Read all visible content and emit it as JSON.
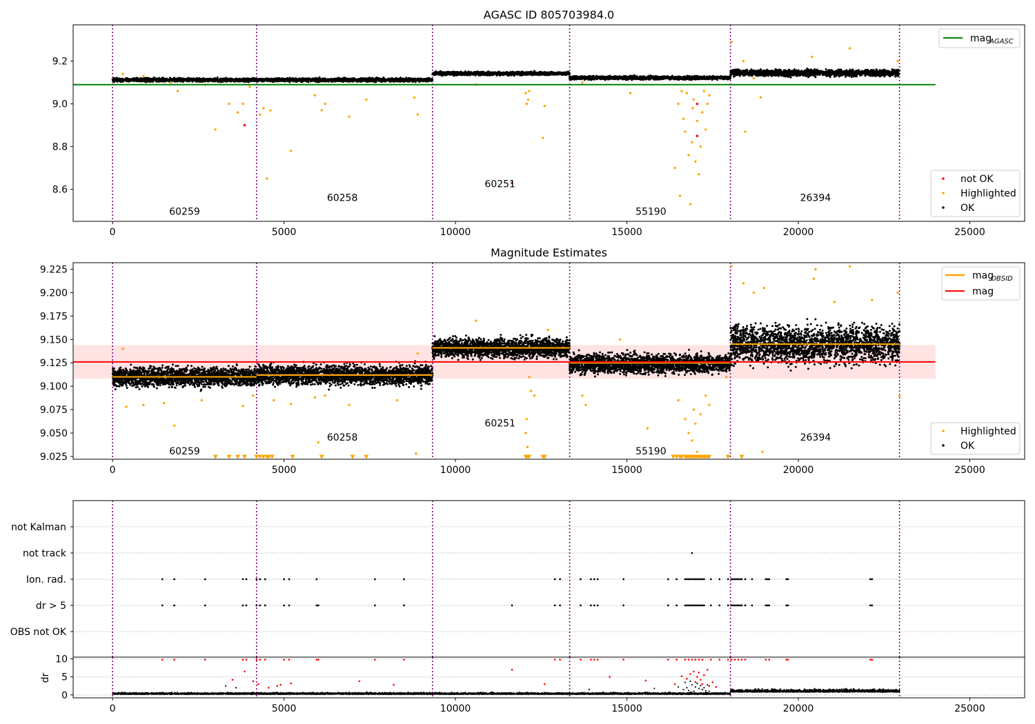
{
  "chart_data": [
    {
      "type": "scatter",
      "title": "AGASC ID 805703984.0",
      "xlim": [
        -1150,
        26600
      ],
      "ylim": [
        8.45,
        9.37
      ],
      "xticks": [
        0,
        5000,
        10000,
        15000,
        20000,
        25000
      ],
      "yticks": [
        8.6,
        8.8,
        9.0,
        9.2
      ],
      "ytick_labels": [
        "8.6",
        "8.8",
        "9.0",
        "9.2"
      ],
      "obsid_boundaries": [
        0,
        4200,
        9330,
        13330,
        18020,
        22950
      ],
      "obsid_labels": [
        {
          "text": "60259",
          "x": 2100,
          "y": 8.48
        },
        {
          "text": "60258",
          "x": 6700,
          "y": 8.545
        },
        {
          "text": "60251",
          "x": 11300,
          "y": 8.61
        },
        {
          "text": "55190",
          "x": 15700,
          "y": 8.48
        },
        {
          "text": "26394",
          "x": 20500,
          "y": 8.545
        }
      ],
      "mag_agasc": 9.09,
      "mag_agasc_range": [
        0,
        24000
      ],
      "ok_segments": [
        {
          "x0": 0,
          "x1": 4200,
          "level": 9.112,
          "noise": 0.008
        },
        {
          "x0": 4200,
          "x1": 9330,
          "level": 9.112,
          "noise": 0.008
        },
        {
          "x0": 9330,
          "x1": 13330,
          "level": 9.142,
          "noise": 0.008
        },
        {
          "x0": 13330,
          "x1": 18020,
          "level": 9.122,
          "noise": 0.008
        },
        {
          "x0": 18020,
          "x1": 22950,
          "level": 9.145,
          "noise": 0.015
        }
      ],
      "highlighted_points": [
        [
          300,
          9.14
        ],
        [
          900,
          9.13
        ],
        [
          1700,
          9.1
        ],
        [
          1900,
          9.06
        ],
        [
          2700,
          9.09
        ],
        [
          3000,
          8.88
        ],
        [
          3400,
          9.0
        ],
        [
          3650,
          8.96
        ],
        [
          3800,
          9.0
        ],
        [
          4000,
          9.08
        ],
        [
          4300,
          8.95
        ],
        [
          4400,
          8.98
        ],
        [
          4500,
          8.65
        ],
        [
          4600,
          8.97
        ],
        [
          5200,
          8.78
        ],
        [
          5900,
          9.04
        ],
        [
          6100,
          8.97
        ],
        [
          6200,
          9.0
        ],
        [
          6900,
          8.94
        ],
        [
          7400,
          9.02
        ],
        [
          8800,
          9.03
        ],
        [
          8900,
          8.95
        ],
        [
          10600,
          9.09
        ],
        [
          12050,
          9.05
        ],
        [
          12080,
          9.0
        ],
        [
          12120,
          9.02
        ],
        [
          12150,
          9.06
        ],
        [
          12600,
          8.99
        ],
        [
          12550,
          8.84
        ],
        [
          13700,
          9.1
        ],
        [
          15100,
          9.05
        ],
        [
          16400,
          8.7
        ],
        [
          16500,
          9.0
        ],
        [
          16550,
          8.57
        ],
        [
          16600,
          9.06
        ],
        [
          16650,
          8.93
        ],
        [
          16700,
          8.87
        ],
        [
          16750,
          9.05
        ],
        [
          16800,
          8.76
        ],
        [
          16850,
          8.53
        ],
        [
          16900,
          8.82
        ],
        [
          16920,
          8.98
        ],
        [
          16950,
          9.02
        ],
        [
          17000,
          8.73
        ],
        [
          17050,
          8.92
        ],
        [
          17100,
          8.67
        ],
        [
          17150,
          8.8
        ],
        [
          17200,
          8.96
        ],
        [
          17250,
          9.06
        ],
        [
          17300,
          8.88
        ],
        [
          17350,
          9.0
        ],
        [
          17400,
          9.04
        ],
        [
          18050,
          9.29
        ],
        [
          18400,
          9.2
        ],
        [
          18450,
          8.87
        ],
        [
          18700,
          9.12
        ],
        [
          18900,
          9.03
        ],
        [
          20400,
          9.22
        ],
        [
          21500,
          9.26
        ],
        [
          22900,
          9.2
        ]
      ],
      "not_ok_points": [
        [
          3850,
          8.9
        ],
        [
          11650,
          8.63
        ],
        [
          17050,
          8.85
        ],
        [
          17050,
          9.0
        ]
      ],
      "legend": [
        {
          "label": "mag",
          "sub": "AGASC",
          "color": "#008000"
        },
        {
          "label": "not OK",
          "color": "#ff0000"
        },
        {
          "label": "Highlighted",
          "color": "#ffa500"
        },
        {
          "label": "OK",
          "color": "#000000"
        }
      ]
    },
    {
      "type": "scatter",
      "title": "Magnitude Estimates",
      "xlim": [
        -1150,
        26600
      ],
      "ylim": [
        9.022,
        9.232
      ],
      "xticks": [
        0,
        5000,
        10000,
        15000,
        20000,
        25000
      ],
      "yticks": [
        9.025,
        9.05,
        9.075,
        9.1,
        9.125,
        9.15,
        9.175,
        9.2,
        9.225
      ],
      "ytick_labels": [
        "9.025",
        "9.050",
        "9.075",
        "9.100",
        "9.125",
        "9.150",
        "9.175",
        "9.200",
        "9.225"
      ],
      "obsid_boundaries": [
        0,
        4200,
        9330,
        13330,
        18020,
        22950
      ],
      "obsid_labels": [
        {
          "text": "60259",
          "x": 2100,
          "y": 9.027
        },
        {
          "text": "60258",
          "x": 6700,
          "y": 9.042
        },
        {
          "text": "60251",
          "x": 11300,
          "y": 9.057
        },
        {
          "text": "55190",
          "x": 15700,
          "y": 9.027
        },
        {
          "text": "26394",
          "x": 20500,
          "y": 9.042
        }
      ],
      "mag": 9.126,
      "mag_band": [
        9.108,
        9.144
      ],
      "mag_range": [
        0,
        24000
      ],
      "mag_obsid": [
        {
          "x0": 0,
          "x1": 4200,
          "value": 9.11
        },
        {
          "x0": 4200,
          "x1": 9330,
          "value": 9.112
        },
        {
          "x0": 9330,
          "x1": 13330,
          "value": 9.141
        },
        {
          "x0": 13330,
          "x1": 18020,
          "value": 9.125
        },
        {
          "x0": 18020,
          "x1": 22950,
          "value": 9.145
        }
      ],
      "ok_segments": [
        {
          "x0": 0,
          "x1": 4200,
          "level": 9.11,
          "noise": 0.01
        },
        {
          "x0": 4200,
          "x1": 9330,
          "level": 9.112,
          "noise": 0.01
        },
        {
          "x0": 9330,
          "x1": 13330,
          "level": 9.141,
          "noise": 0.01
        },
        {
          "x0": 13330,
          "x1": 18020,
          "level": 9.124,
          "noise": 0.01
        },
        {
          "x0": 18020,
          "x1": 22950,
          "level": 9.145,
          "noise": 0.02
        }
      ],
      "highlighted_points": [
        [
          300,
          9.14
        ],
        [
          400,
          9.078
        ],
        [
          900,
          9.08
        ],
        [
          1500,
          9.082
        ],
        [
          1800,
          9.058
        ],
        [
          2600,
          9.085
        ],
        [
          3800,
          9.079
        ],
        [
          4100,
          9.09
        ],
        [
          4700,
          9.085
        ],
        [
          5200,
          9.081
        ],
        [
          5900,
          9.088
        ],
        [
          6000,
          9.04
        ],
        [
          6200,
          9.09
        ],
        [
          6900,
          9.08
        ],
        [
          8300,
          9.085
        ],
        [
          8850,
          9.028
        ],
        [
          8900,
          9.135
        ],
        [
          10600,
          9.17
        ],
        [
          12050,
          9.05
        ],
        [
          12080,
          9.065
        ],
        [
          12100,
          9.035
        ],
        [
          12150,
          9.11
        ],
        [
          12200,
          9.095
        ],
        [
          12300,
          9.09
        ],
        [
          12700,
          9.16
        ],
        [
          13700,
          9.09
        ],
        [
          13800,
          9.08
        ],
        [
          14800,
          9.15
        ],
        [
          15600,
          9.055
        ],
        [
          16500,
          9.085
        ],
        [
          16700,
          9.065
        ],
        [
          16800,
          9.05
        ],
        [
          16900,
          9.042
        ],
        [
          16950,
          9.075
        ],
        [
          17000,
          9.06
        ],
        [
          17050,
          9.03
        ],
        [
          17150,
          9.07
        ],
        [
          17300,
          9.09
        ],
        [
          17400,
          9.08
        ],
        [
          17900,
          9.11
        ],
        [
          18050,
          9.228
        ],
        [
          18400,
          9.21
        ],
        [
          18700,
          9.2
        ],
        [
          18950,
          9.03
        ],
        [
          19000,
          9.205
        ],
        [
          20450,
          9.215
        ],
        [
          20500,
          9.225
        ],
        [
          21050,
          9.19
        ],
        [
          21500,
          9.228
        ],
        [
          22150,
          9.192
        ],
        [
          22900,
          9.2
        ],
        [
          22950,
          9.09
        ]
      ],
      "low_markers_x": [
        3000,
        3400,
        3650,
        3850,
        4200,
        4300,
        4400,
        4500,
        4550,
        4650,
        5250,
        6100,
        7000,
        7400,
        12050,
        12100,
        12150,
        12550,
        12600,
        16350,
        16450,
        16550,
        16600,
        16700,
        16750,
        16800,
        16850,
        16900,
        16950,
        17000,
        17050,
        17100,
        17150,
        17200,
        17250,
        17300,
        17350,
        17400,
        17950,
        18350
      ],
      "low_marker_y": 9.0245,
      "legend": [
        {
          "label": "mag",
          "sub": "OBSID",
          "color": "#ffa500"
        },
        {
          "label": "mag",
          "color": "#ff0000"
        },
        {
          "label": "Highlighted",
          "color": "#ffa500"
        },
        {
          "label": "OK",
          "color": "#000000"
        }
      ]
    },
    {
      "type": "scatter",
      "xlim": [
        -1150,
        26600
      ],
      "flag_rows": [
        "not Kalman",
        "not track",
        "Ion. rad.",
        "dr > 5",
        "OBS not OK"
      ],
      "obsid_boundaries": [
        0,
        4200,
        9330,
        13330,
        18020,
        22950
      ],
      "flag_points": {
        "not Kalman": [],
        "not track": [
          16900
        ],
        "Ion. rad.": [
          1450,
          1800,
          2700,
          3800,
          3900,
          4200,
          4300,
          4450,
          5000,
          5150,
          5950,
          7650,
          8500,
          12900,
          13050,
          13650,
          13950,
          14050,
          14150,
          14900,
          16200,
          16450,
          16700,
          16750,
          16800,
          16850,
          16900,
          16950,
          17000,
          17050,
          17100,
          17150,
          17200,
          17250,
          17450,
          17700,
          17950,
          18050,
          18100,
          18150,
          18200,
          18250,
          18300,
          18350,
          18450,
          18650,
          19050,
          19100,
          19150,
          19650,
          19700,
          22100,
          22150
        ],
        "dr > 5": [
          1450,
          1800,
          2700,
          3800,
          3900,
          4200,
          4300,
          4450,
          5000,
          5150,
          5950,
          6000,
          7650,
          8500,
          11650,
          12900,
          13050,
          13650,
          13950,
          14050,
          14150,
          14900,
          16200,
          16450,
          16700,
          16750,
          16800,
          16850,
          16900,
          16950,
          17000,
          17050,
          17100,
          17150,
          17200,
          17250,
          17450,
          17700,
          17950,
          18050,
          18100,
          18150,
          18200,
          18250,
          18300,
          18350,
          18450,
          18650,
          19050,
          19100,
          19150,
          19650,
          19700,
          22100,
          22150
        ],
        "OBS not OK": []
      }
    },
    {
      "type": "scatter",
      "ylabel": "dr",
      "xlim": [
        -1150,
        26600
      ],
      "ylim": [
        -0.8,
        10.5
      ],
      "xticks": [
        0,
        5000,
        10000,
        15000,
        20000,
        25000
      ],
      "yticks": [
        0,
        5,
        10
      ],
      "ytick_labels": [
        "0",
        "5",
        "10"
      ],
      "obsid_boundaries": [
        0,
        4200,
        9330,
        13330,
        18020,
        22950
      ],
      "ok_segments": [
        {
          "x0": 0,
          "x1": 18020,
          "level": 0.4,
          "noise": 0.25
        },
        {
          "x0": 18020,
          "x1": 22950,
          "level": 1.0,
          "noise": 0.45
        }
      ],
      "red_points": [
        [
          1450,
          9.8
        ],
        [
          1800,
          9.8
        ],
        [
          2700,
          9.8
        ],
        [
          3800,
          9.8
        ],
        [
          3900,
          9.8
        ],
        [
          4200,
          9.8
        ],
        [
          4300,
          9.8
        ],
        [
          4450,
          9.8
        ],
        [
          5000,
          9.8
        ],
        [
          5150,
          9.8
        ],
        [
          5950,
          9.8
        ],
        [
          6000,
          9.8
        ],
        [
          7650,
          9.8
        ],
        [
          8500,
          9.8
        ],
        [
          12900,
          9.8
        ],
        [
          13050,
          9.8
        ],
        [
          13650,
          9.8
        ],
        [
          13950,
          9.8
        ],
        [
          14050,
          9.8
        ],
        [
          14150,
          9.8
        ],
        [
          14900,
          9.8
        ],
        [
          16200,
          9.8
        ],
        [
          16450,
          9.8
        ],
        [
          16700,
          9.8
        ],
        [
          16800,
          9.8
        ],
        [
          16900,
          9.8
        ],
        [
          17000,
          9.8
        ],
        [
          17100,
          9.8
        ],
        [
          17200,
          9.8
        ],
        [
          17450,
          9.8
        ],
        [
          17700,
          9.8
        ],
        [
          17950,
          9.8
        ],
        [
          18050,
          9.8
        ],
        [
          18150,
          9.8
        ],
        [
          18250,
          9.8
        ],
        [
          18350,
          9.8
        ],
        [
          18450,
          9.8
        ],
        [
          19050,
          9.8
        ],
        [
          19150,
          9.8
        ],
        [
          19650,
          9.8
        ],
        [
          19700,
          9.8
        ],
        [
          22100,
          9.8
        ],
        [
          22150,
          9.8
        ],
        [
          3850,
          6.5
        ],
        [
          3500,
          4.2
        ],
        [
          4100,
          3.8
        ],
        [
          4250,
          3.0
        ],
        [
          4550,
          2.0
        ],
        [
          4900,
          2.8
        ],
        [
          5200,
          3.2
        ],
        [
          7200,
          3.8
        ],
        [
          8200,
          2.8
        ],
        [
          11650,
          7.0
        ],
        [
          12600,
          3.0
        ],
        [
          14500,
          5.0
        ],
        [
          15550,
          4.0
        ],
        [
          16400,
          3.0
        ],
        [
          16600,
          5.2
        ],
        [
          16750,
          4.5
        ],
        [
          16850,
          5.8
        ],
        [
          16950,
          6.5
        ],
        [
          17000,
          3.6
        ],
        [
          17050,
          5.0
        ],
        [
          17100,
          6.2
        ],
        [
          17150,
          4.2
        ],
        [
          17200,
          3.0
        ],
        [
          17250,
          5.5
        ],
        [
          17350,
          7.0
        ],
        [
          17400,
          2.5
        ],
        [
          17500,
          3.5
        ],
        [
          17600,
          2.2
        ]
      ],
      "black_points": [
        [
          3300,
          2.5
        ],
        [
          3600,
          2.0
        ],
        [
          4800,
          2.5
        ],
        [
          16500,
          2.2
        ],
        [
          16650,
          1.5
        ],
        [
          16700,
          3.5
        ],
        [
          16750,
          2.0
        ],
        [
          16800,
          1.2
        ],
        [
          16850,
          3.8
        ],
        [
          16900,
          2.8
        ],
        [
          16950,
          1.0
        ],
        [
          17000,
          2.2
        ],
        [
          17050,
          3.2
        ],
        [
          17100,
          1.8
        ],
        [
          17150,
          2.6
        ],
        [
          17200,
          1.5
        ],
        [
          17250,
          2.0
        ],
        [
          17300,
          1.2
        ],
        [
          17350,
          2.8
        ],
        [
          17400,
          1.0
        ],
        [
          13900,
          1.5
        ],
        [
          15800,
          1.8
        ]
      ]
    }
  ]
}
